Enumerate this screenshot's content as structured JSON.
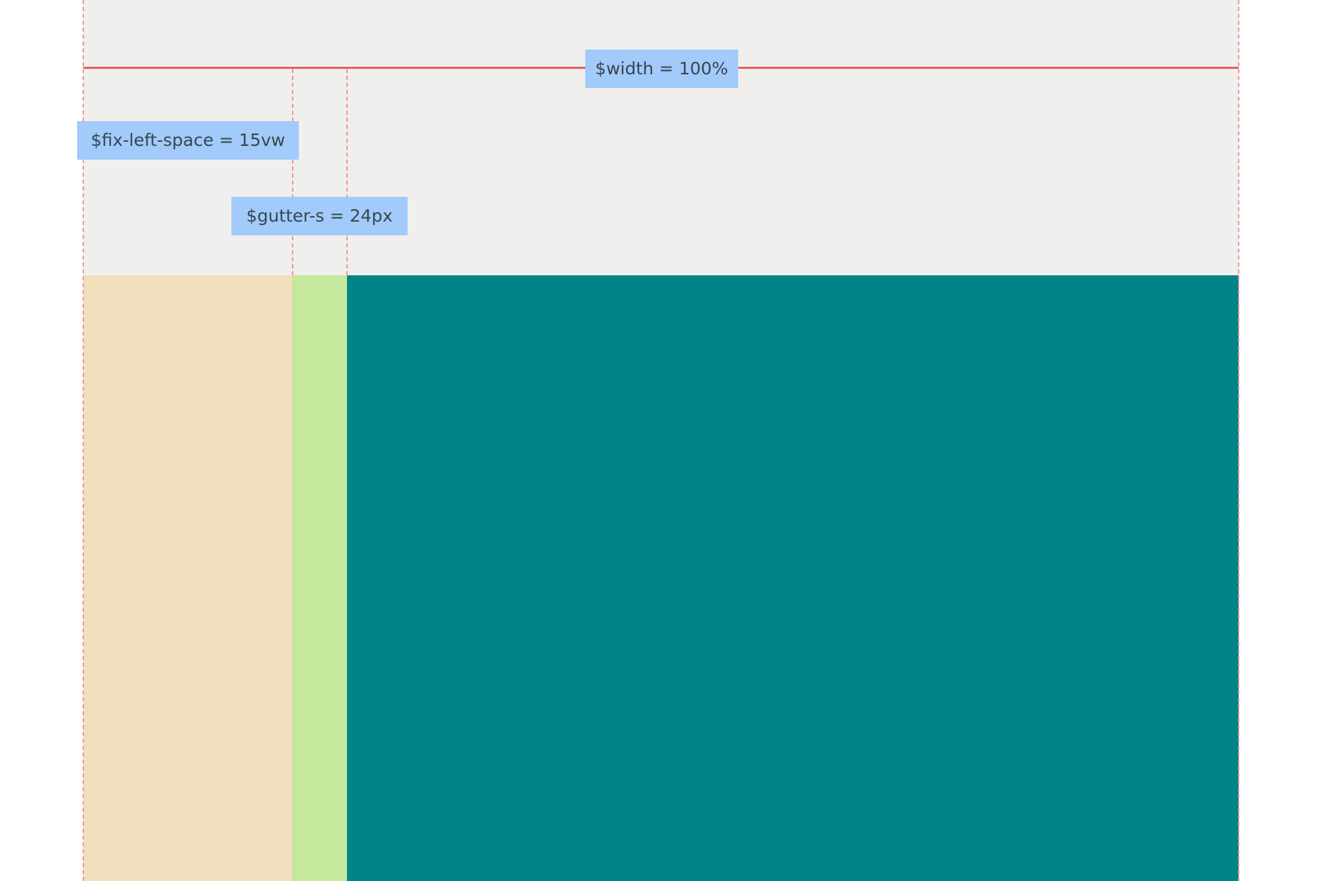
{
  "labels": {
    "width": "$width = 100%",
    "fix_left_space": "$fix-left-space = 15vw",
    "gutter_s": "$gutter-s = 24px"
  },
  "colors": {
    "background": "#ffffff",
    "top_area": "#f0efee",
    "left_space": "#f1dfbe",
    "gutter": "#c5e89c",
    "main": "#008486",
    "label_bg": "#a2cafa",
    "measure_line": "#ea5c5c",
    "guide_dash": "#f09494"
  }
}
